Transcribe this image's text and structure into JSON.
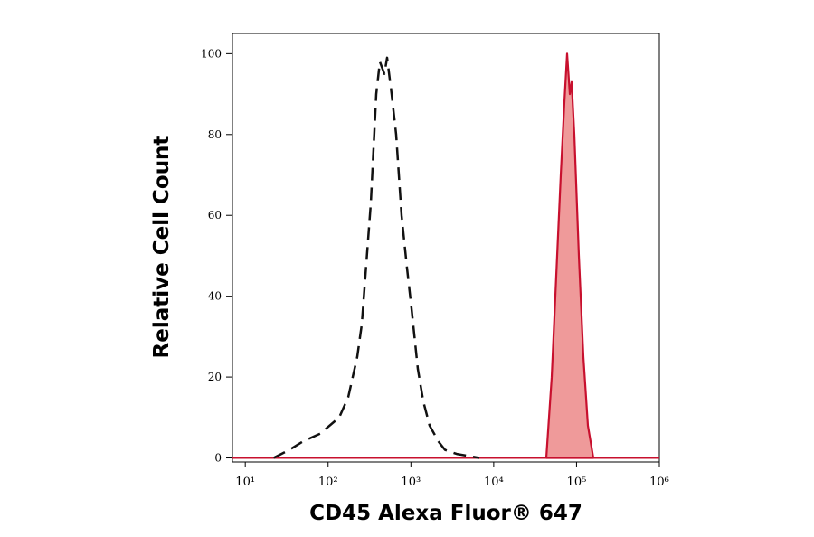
{
  "chart_data": {
    "type": "histogram-overlay",
    "x_label": "CD45 Alexa Fluor® 647",
    "y_label": "Relative Cell Count",
    "x_log": true,
    "xlim": [
      7,
      1000000
    ],
    "ylim": [
      -1,
      105
    ],
    "xticks": [
      {
        "value": 10,
        "label": "10¹"
      },
      {
        "value": 100,
        "label": "10²"
      },
      {
        "value": 1000,
        "label": "10³"
      },
      {
        "value": 10000,
        "label": "10⁴"
      },
      {
        "value": 100000,
        "label": "10⁵"
      },
      {
        "value": 1000000,
        "label": "10⁶"
      }
    ],
    "yticks": [
      0,
      20,
      40,
      60,
      80,
      100
    ],
    "series": [
      {
        "color": "#111111",
        "dashed": true,
        "filled": false,
        "x": [
          22,
          34,
          49,
          80,
          136,
          175,
          225,
          255,
          328,
          382,
          422,
          479,
          516,
          585,
          664,
          771,
          897,
          1018,
          1213,
          1410,
          1683,
          2163,
          2582,
          3581,
          6714
        ],
        "values": [
          0,
          2,
          4,
          6,
          10,
          15,
          25,
          33,
          63,
          90,
          98,
          95,
          99,
          90,
          80,
          60,
          47,
          37,
          22,
          14,
          8,
          4,
          2,
          1,
          0
        ]
      },
      {
        "color": "#c8102e",
        "fill_color": "#ef9a9a",
        "dashed": false,
        "filled": true,
        "x": [
          43150,
          50120,
          56880,
          64570,
          71290,
          76920,
          82980,
          87300,
          93970,
          106700,
          121000,
          137100,
          159600
        ],
        "values": [
          0,
          20,
          45,
          70,
          88,
          100,
          90,
          93,
          80,
          50,
          25,
          8,
          0
        ]
      }
    ]
  }
}
